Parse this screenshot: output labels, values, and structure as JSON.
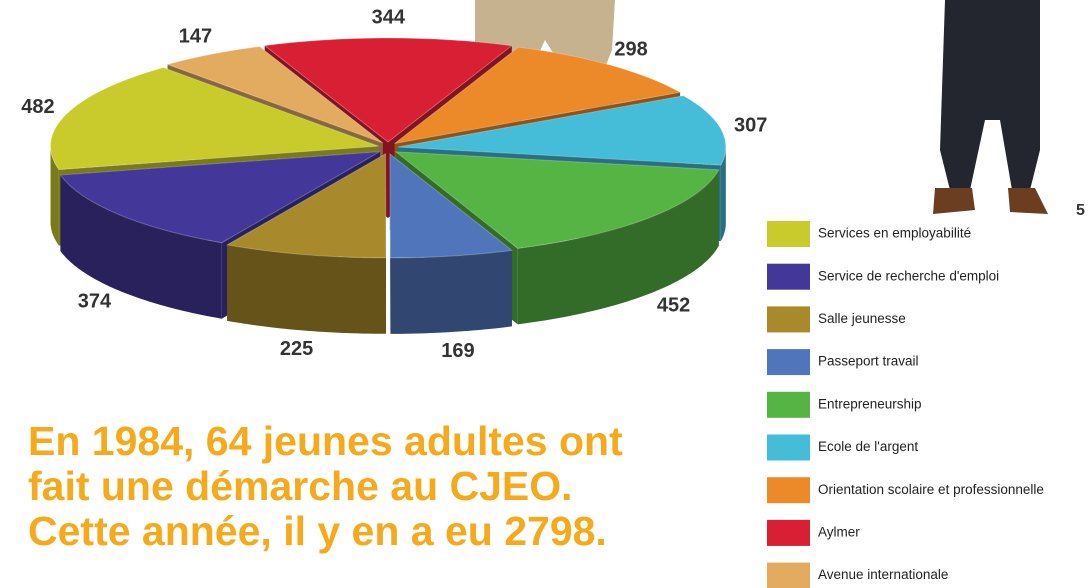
{
  "chart_data": {
    "type": "pie",
    "categories": [
      "Services en employabilité",
      "Service de recherche d'emploi",
      "Salle jeunesse",
      "Passeport travail",
      "Entrepreneurship",
      "Ecole de l'argent",
      "Orientation scolaire et professionnelle",
      "Aylmer",
      "Avenue internationale"
    ],
    "values": [
      482,
      374,
      225,
      169,
      452,
      307,
      298,
      344,
      147
    ],
    "colors": [
      "#c9cb2c",
      "#43379a",
      "#a88a2c",
      "#5175ba",
      "#55b443",
      "#45bcd8",
      "#ec8a2a",
      "#d81f34",
      "#e3ab60"
    ],
    "headline": [
      "En 1984, 64 jeunes adultes ont",
      "fait une démarche au CJEO.",
      "Cette année, il y en a eu 2798."
    ],
    "annotation": "5"
  }
}
